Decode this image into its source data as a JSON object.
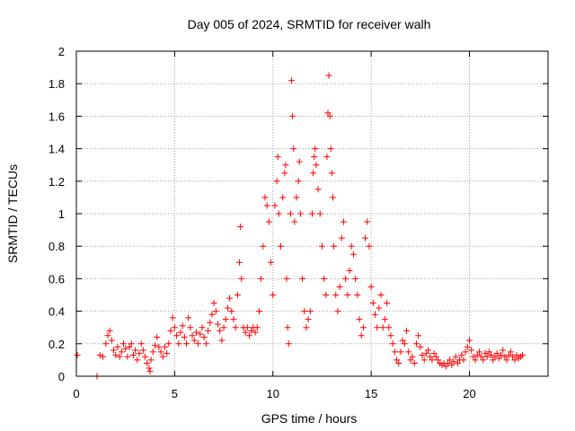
{
  "chart_data": {
    "type": "scatter",
    "title": "Day 005 of 2024, SRMTID for receiver walh",
    "xlabel": "GPS time / hours",
    "ylabel": "SRMTID / TECUs",
    "xlim": [
      0,
      24
    ],
    "ylim": [
      0,
      2
    ],
    "x_ticks": [
      0,
      5,
      10,
      15,
      20
    ],
    "x_tick_labels": [
      "0",
      "5",
      "10",
      "15",
      "20"
    ],
    "y_ticks": [
      0,
      0.2,
      0.4,
      0.6,
      0.8,
      1,
      1.2,
      1.4,
      1.6,
      1.8,
      2
    ],
    "y_tick_labels": [
      "0",
      "0.2",
      "0.4",
      "0.6",
      "0.8",
      "1",
      "1.2",
      "1.4",
      "1.6",
      "1.8",
      "2"
    ],
    "grid": true,
    "marker": "+",
    "marker_color": "#ff0000",
    "series": [
      {
        "name": "SRMTID",
        "points": [
          [
            0.05,
            0.13
          ],
          [
            1.05,
            0.0
          ],
          [
            1.2,
            0.13
          ],
          [
            1.35,
            0.12
          ],
          [
            1.5,
            0.2
          ],
          [
            1.6,
            0.25
          ],
          [
            1.7,
            0.28
          ],
          [
            1.8,
            0.22
          ],
          [
            1.9,
            0.16
          ],
          [
            2.0,
            0.13
          ],
          [
            2.1,
            0.18
          ],
          [
            2.2,
            0.12
          ],
          [
            2.3,
            0.15
          ],
          [
            2.4,
            0.2
          ],
          [
            2.5,
            0.17
          ],
          [
            2.6,
            0.12
          ],
          [
            2.7,
            0.18
          ],
          [
            2.8,
            0.2
          ],
          [
            2.9,
            0.13
          ],
          [
            3.0,
            0.16
          ],
          [
            3.1,
            0.1
          ],
          [
            3.2,
            0.14
          ],
          [
            3.3,
            0.2
          ],
          [
            3.4,
            0.16
          ],
          [
            3.5,
            0.12
          ],
          [
            3.6,
            0.08
          ],
          [
            3.7,
            0.05
          ],
          [
            3.75,
            0.03
          ],
          [
            3.8,
            0.1
          ],
          [
            3.9,
            0.15
          ],
          [
            4.0,
            0.19
          ],
          [
            4.1,
            0.24
          ],
          [
            4.2,
            0.18
          ],
          [
            4.3,
            0.15
          ],
          [
            4.4,
            0.12
          ],
          [
            4.5,
            0.18
          ],
          [
            4.6,
            0.14
          ],
          [
            4.7,
            0.2
          ],
          [
            4.8,
            0.28
          ],
          [
            4.9,
            0.36
          ],
          [
            5.0,
            0.3
          ],
          [
            5.1,
            0.25
          ],
          [
            5.2,
            0.2
          ],
          [
            5.3,
            0.27
          ],
          [
            5.4,
            0.31
          ],
          [
            5.5,
            0.24
          ],
          [
            5.6,
            0.2
          ],
          [
            5.7,
            0.36
          ],
          [
            5.8,
            0.3
          ],
          [
            5.9,
            0.25
          ],
          [
            6.0,
            0.22
          ],
          [
            6.1,
            0.27
          ],
          [
            6.2,
            0.2
          ],
          [
            6.3,
            0.26
          ],
          [
            6.4,
            0.3
          ],
          [
            6.5,
            0.24
          ],
          [
            6.6,
            0.2
          ],
          [
            6.7,
            0.28
          ],
          [
            6.8,
            0.33
          ],
          [
            6.9,
            0.38
          ],
          [
            7.0,
            0.45
          ],
          [
            7.1,
            0.4
          ],
          [
            7.2,
            0.32
          ],
          [
            7.3,
            0.28
          ],
          [
            7.4,
            0.22
          ],
          [
            7.5,
            0.3
          ],
          [
            7.6,
            0.35
          ],
          [
            7.7,
            0.42
          ],
          [
            7.8,
            0.48
          ],
          [
            7.9,
            0.4
          ],
          [
            8.0,
            0.35
          ],
          [
            8.1,
            0.3
          ],
          [
            8.2,
            0.5
          ],
          [
            8.3,
            0.7
          ],
          [
            8.35,
            0.92
          ],
          [
            8.4,
            0.6
          ],
          [
            8.5,
            0.3
          ],
          [
            8.6,
            0.27
          ],
          [
            8.7,
            0.3
          ],
          [
            8.8,
            0.25
          ],
          [
            8.9,
            0.28
          ],
          [
            9.0,
            0.3
          ],
          [
            9.1,
            0.27
          ],
          [
            9.2,
            0.3
          ],
          [
            9.3,
            0.4
          ],
          [
            9.4,
            0.6
          ],
          [
            9.5,
            0.8
          ],
          [
            9.6,
            1.1
          ],
          [
            9.7,
            1.05
          ],
          [
            9.8,
            0.95
          ],
          [
            9.9,
            0.7
          ],
          [
            10.0,
            0.5
          ],
          [
            10.1,
            1.05
          ],
          [
            10.2,
            1.2
          ],
          [
            10.25,
            1.35
          ],
          [
            10.3,
            1.0
          ],
          [
            10.4,
            0.8
          ],
          [
            10.5,
            1.1
          ],
          [
            10.6,
            1.25
          ],
          [
            10.65,
            1.3
          ],
          [
            10.7,
            0.6
          ],
          [
            10.75,
            0.3
          ],
          [
            10.8,
            0.2
          ],
          [
            10.9,
            1.0
          ],
          [
            10.95,
            1.82
          ],
          [
            11.0,
            1.6
          ],
          [
            11.05,
            1.4
          ],
          [
            11.1,
            0.95
          ],
          [
            11.2,
            1.1
          ],
          [
            11.3,
            1.2
          ],
          [
            11.35,
            1.32
          ],
          [
            11.4,
            1.0
          ],
          [
            11.5,
            0.6
          ],
          [
            11.6,
            0.4
          ],
          [
            11.7,
            0.3
          ],
          [
            11.8,
            0.35
          ],
          [
            11.9,
            0.4
          ],
          [
            12.0,
            1.0
          ],
          [
            12.05,
            1.25
          ],
          [
            12.1,
            1.35
          ],
          [
            12.15,
            1.4
          ],
          [
            12.2,
            1.3
          ],
          [
            12.3,
            1.15
          ],
          [
            12.4,
            1.0
          ],
          [
            12.5,
            0.8
          ],
          [
            12.6,
            0.6
          ],
          [
            12.7,
            0.5
          ],
          [
            12.75,
            1.35
          ],
          [
            12.8,
            1.62
          ],
          [
            12.85,
            1.85
          ],
          [
            12.9,
            1.6
          ],
          [
            12.95,
            1.4
          ],
          [
            13.0,
            1.25
          ],
          [
            13.05,
            1.1
          ],
          [
            13.1,
            0.8
          ],
          [
            13.2,
            0.5
          ],
          [
            13.3,
            0.4
          ],
          [
            13.4,
            0.55
          ],
          [
            13.5,
            0.85
          ],
          [
            13.6,
            0.95
          ],
          [
            13.7,
            0.6
          ],
          [
            13.8,
            0.5
          ],
          [
            13.9,
            0.65
          ],
          [
            14.0,
            0.8
          ],
          [
            14.1,
            0.75
          ],
          [
            14.2,
            0.6
          ],
          [
            14.3,
            0.5
          ],
          [
            14.4,
            0.35
          ],
          [
            14.5,
            0.25
          ],
          [
            14.6,
            0.3
          ],
          [
            14.7,
            0.85
          ],
          [
            14.8,
            0.95
          ],
          [
            14.9,
            0.8
          ],
          [
            15.0,
            0.55
          ],
          [
            15.1,
            0.45
          ],
          [
            15.2,
            0.38
          ],
          [
            15.3,
            0.3
          ],
          [
            15.4,
            0.42
          ],
          [
            15.5,
            0.5
          ],
          [
            15.6,
            0.3
          ],
          [
            15.7,
            0.35
          ],
          [
            15.8,
            0.45
          ],
          [
            15.9,
            0.3
          ],
          [
            16.0,
            0.25
          ],
          [
            16.1,
            0.2
          ],
          [
            16.2,
            0.15
          ],
          [
            16.3,
            0.1
          ],
          [
            16.4,
            0.08
          ],
          [
            16.5,
            0.15
          ],
          [
            16.6,
            0.22
          ],
          [
            16.7,
            0.2
          ],
          [
            16.8,
            0.28
          ],
          [
            16.9,
            0.15
          ],
          [
            17.0,
            0.1
          ],
          [
            17.1,
            0.12
          ],
          [
            17.2,
            0.08
          ],
          [
            17.3,
            0.2
          ],
          [
            17.4,
            0.25
          ],
          [
            17.5,
            0.18
          ],
          [
            17.6,
            0.13
          ],
          [
            17.7,
            0.1
          ],
          [
            17.8,
            0.14
          ],
          [
            17.9,
            0.16
          ],
          [
            18.0,
            0.12
          ],
          [
            18.1,
            0.1
          ],
          [
            18.2,
            0.14
          ],
          [
            18.3,
            0.12
          ],
          [
            18.4,
            0.1
          ],
          [
            18.5,
            0.08
          ],
          [
            18.6,
            0.07
          ],
          [
            18.7,
            0.08
          ],
          [
            18.8,
            0.06
          ],
          [
            18.9,
            0.08
          ],
          [
            19.0,
            0.1
          ],
          [
            19.1,
            0.07
          ],
          [
            19.2,
            0.09
          ],
          [
            19.3,
            0.12
          ],
          [
            19.4,
            0.08
          ],
          [
            19.5,
            0.1
          ],
          [
            19.6,
            0.13
          ],
          [
            19.7,
            0.1
          ],
          [
            19.8,
            0.15
          ],
          [
            19.9,
            0.18
          ],
          [
            20.0,
            0.22
          ],
          [
            20.1,
            0.16
          ],
          [
            20.2,
            0.12
          ],
          [
            20.3,
            0.1
          ],
          [
            20.4,
            0.13
          ],
          [
            20.5,
            0.15
          ],
          [
            20.6,
            0.12
          ],
          [
            20.7,
            0.1
          ],
          [
            20.8,
            0.14
          ],
          [
            20.9,
            0.12
          ],
          [
            21.0,
            0.15
          ],
          [
            21.1,
            0.13
          ],
          [
            21.2,
            0.1
          ],
          [
            21.3,
            0.12
          ],
          [
            21.4,
            0.14
          ],
          [
            21.5,
            0.11
          ],
          [
            21.6,
            0.13
          ],
          [
            21.7,
            0.16
          ],
          [
            21.8,
            0.12
          ],
          [
            21.9,
            0.1
          ],
          [
            22.0,
            0.13
          ],
          [
            22.1,
            0.15
          ],
          [
            22.2,
            0.12
          ],
          [
            22.3,
            0.1
          ],
          [
            22.4,
            0.13
          ],
          [
            22.5,
            0.11
          ],
          [
            22.6,
            0.12
          ],
          [
            22.7,
            0.13
          ]
        ]
      }
    ]
  }
}
